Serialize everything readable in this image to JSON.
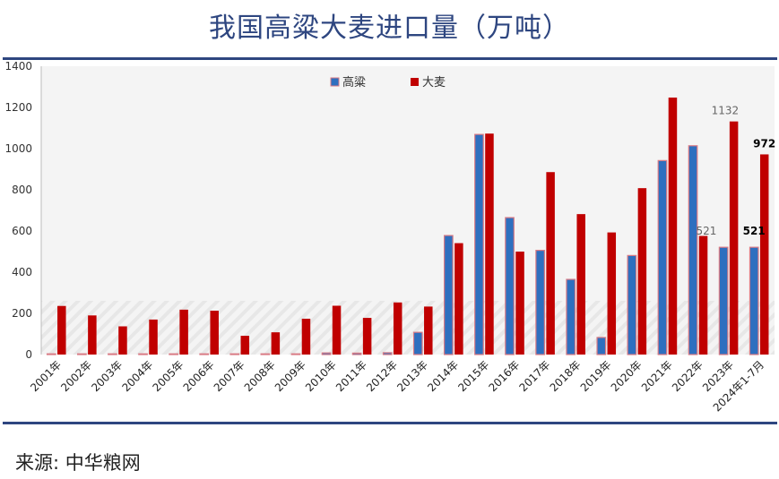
{
  "header": {
    "title": "我国高粱大麦进口量（万吨）"
  },
  "footer": {
    "source": "来源: 中华粮网"
  },
  "colors": {
    "sorghum": "#2e6fbf",
    "sorghum_edge": "#d97a84",
    "barley": "#c00000",
    "frame": "#2e4680",
    "plot_bg": "#f4f4f4"
  },
  "chart_data": {
    "type": "bar",
    "title": "我国高粱大麦进口量（万吨）",
    "categories": [
      "2001年",
      "2002年",
      "2003年",
      "2004年",
      "2005年",
      "2006年",
      "2007年",
      "2008年",
      "2009年",
      "2010年",
      "2011年",
      "2012年",
      "2013年",
      "2014年",
      "2015年",
      "2016年",
      "2017年",
      "2018年",
      "2019年",
      "2020年",
      "2021年",
      "2022年",
      "2023年",
      "2024年1-7月"
    ],
    "series": [
      {
        "name": "高粱",
        "values": [
          3,
          2,
          2,
          2,
          2,
          2,
          2,
          2,
          2,
          8,
          7,
          9,
          108,
          578,
          1069,
          665,
          506,
          365,
          83,
          481,
          942,
          1014,
          521,
          521
        ]
      },
      {
        "name": "大麦",
        "values": [
          236,
          190,
          137,
          170,
          218,
          213,
          91,
          108,
          174,
          237,
          178,
          253,
          233,
          541,
          1073,
          500,
          886,
          682,
          593,
          808,
          1248,
          576,
          1132,
          972
        ]
      }
    ],
    "data_labels": [
      {
        "series": "高粱",
        "category": "2023年",
        "text": "521"
      },
      {
        "series": "大麦",
        "category": "2023年",
        "text": "1132"
      },
      {
        "series": "高粱",
        "category": "2024年1-7月",
        "text": "521"
      },
      {
        "series": "大麦",
        "category": "2024年1-7月",
        "text": "972"
      }
    ],
    "ylim": [
      0,
      1400
    ],
    "yticks": [
      0,
      200,
      400,
      600,
      800,
      1000,
      1200,
      1400
    ],
    "legend": "top-center",
    "grid": false
  }
}
